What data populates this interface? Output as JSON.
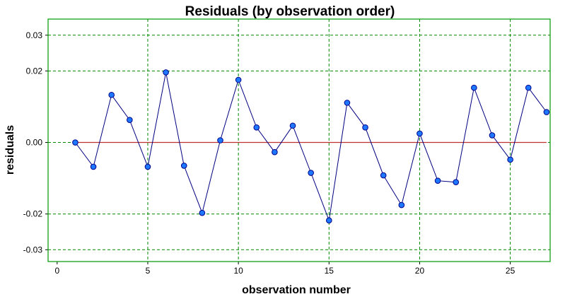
{
  "chart_data": {
    "type": "scatter",
    "title": "Residuals (by observation order)",
    "xlabel": "observation number",
    "ylabel": "residuals",
    "xlim": [
      -0.5,
      27.2
    ],
    "ylim": [
      -0.0333,
      0.0345
    ],
    "x_ticks": [
      0,
      5,
      10,
      15,
      20,
      25
    ],
    "y_ticks": [
      -0.03,
      -0.02,
      0.0,
      0.02,
      0.03
    ],
    "y_tick_labels": [
      "-0.03",
      "-0.02",
      "0.00",
      "0.02",
      "0.03"
    ],
    "x_gridlines": [
      5,
      10,
      15,
      20,
      25
    ],
    "y_gridlines": [
      -0.03,
      -0.02,
      0.0,
      0.02,
      0.03
    ],
    "grid": true,
    "reference_line": 0,
    "series": [
      {
        "x": [
          1,
          2,
          3,
          4,
          5,
          6,
          7,
          8,
          9,
          10,
          11,
          12,
          13,
          14,
          15,
          16,
          17,
          18,
          19,
          20,
          21,
          22,
          23,
          24,
          25,
          26,
          27
        ],
        "values": [
          0.0,
          -0.0068,
          0.0133,
          0.0063,
          -0.0068,
          0.0196,
          -0.0065,
          -0.0197,
          0.0006,
          0.0175,
          0.0042,
          -0.0027,
          0.0047,
          -0.0085,
          -0.0218,
          0.0111,
          0.0042,
          -0.0092,
          -0.0175,
          0.0025,
          -0.0107,
          -0.0111,
          0.0153,
          0.002,
          -0.0048,
          0.0153,
          0.0085
        ]
      }
    ],
    "colors": {
      "frame": "#009900",
      "grid": "#008800",
      "line": "#000080",
      "marker_fill": "#1e78ff",
      "marker_stroke": "#00008b",
      "zero_line": "#c03030"
    }
  }
}
